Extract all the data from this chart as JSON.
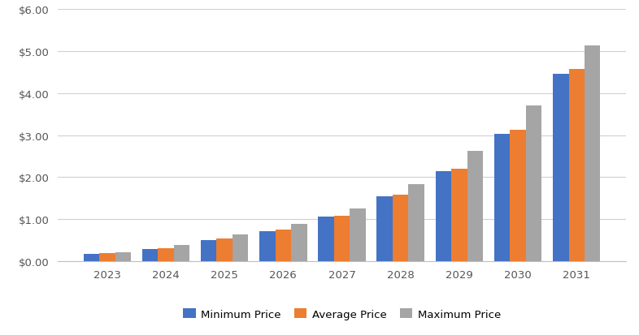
{
  "years": [
    2023,
    2024,
    2025,
    2026,
    2027,
    2028,
    2029,
    2030,
    2031
  ],
  "minimum_price": [
    0.18,
    0.28,
    0.5,
    0.72,
    1.07,
    1.55,
    2.15,
    3.03,
    4.47
  ],
  "average_price": [
    0.2,
    0.3,
    0.53,
    0.75,
    1.09,
    1.58,
    2.2,
    3.13,
    4.58
  ],
  "maximum_price": [
    0.22,
    0.38,
    0.63,
    0.88,
    1.25,
    1.83,
    2.63,
    3.7,
    5.13
  ],
  "colors": {
    "minimum": "#4472C4",
    "average": "#ED7D31",
    "maximum": "#A5A5A5"
  },
  "ylim": [
    0,
    6.0
  ],
  "yticks": [
    0.0,
    1.0,
    2.0,
    3.0,
    4.0,
    5.0,
    6.0
  ],
  "ytick_labels": [
    "$0.00",
    "$1.00",
    "$2.00",
    "$3.00",
    "$4.00",
    "$5.00",
    "$6.00"
  ],
  "legend_labels": [
    "Minimum Price",
    "Average Price",
    "Maximum Price"
  ],
  "background_color": "#FFFFFF",
  "grid_color": "#D0D0D0",
  "bar_width": 0.27
}
